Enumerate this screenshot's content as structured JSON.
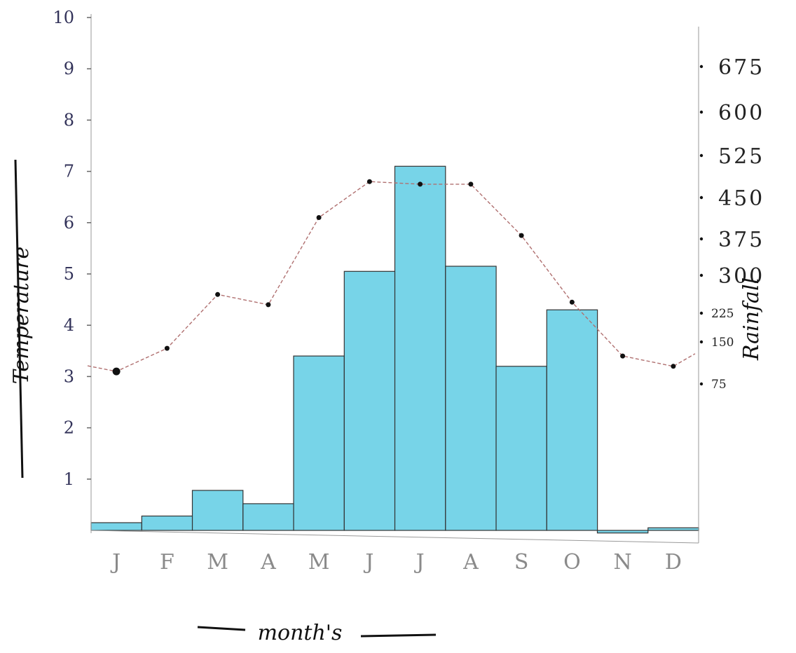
{
  "chart_data": {
    "type": "bar",
    "title": "",
    "categories": [
      "J",
      "F",
      "M",
      "A",
      "M",
      "J",
      "J",
      "A",
      "S",
      "O",
      "N",
      "D"
    ],
    "xlabel": "month's",
    "y_left": {
      "label": "Temperature",
      "ticks": [
        "1",
        "2",
        "3",
        "4",
        "5",
        "6",
        "7",
        "8",
        "9",
        "10"
      ],
      "range": [
        0,
        10
      ]
    },
    "y_right": {
      "label": "Rainfall",
      "ticks": [
        "75",
        "150",
        "225",
        "300",
        "375",
        "450",
        "525",
        "600",
        "675"
      ]
    },
    "series": [
      {
        "type": "bar",
        "axis": "left",
        "values": [
          0.15,
          0.28,
          0.78,
          0.52,
          3.4,
          5.05,
          7.1,
          5.15,
          3.2,
          4.3,
          -0.05,
          0.05
        ],
        "color": "#5fcce4"
      },
      {
        "type": "line",
        "axis": "left",
        "values": [
          3.1,
          3.55,
          4.6,
          4.4,
          6.1,
          6.8,
          6.75,
          6.75,
          5.75,
          4.45,
          3.4,
          3.2
        ],
        "color": "#b07070"
      }
    ],
    "grid": false,
    "legend": "none"
  }
}
